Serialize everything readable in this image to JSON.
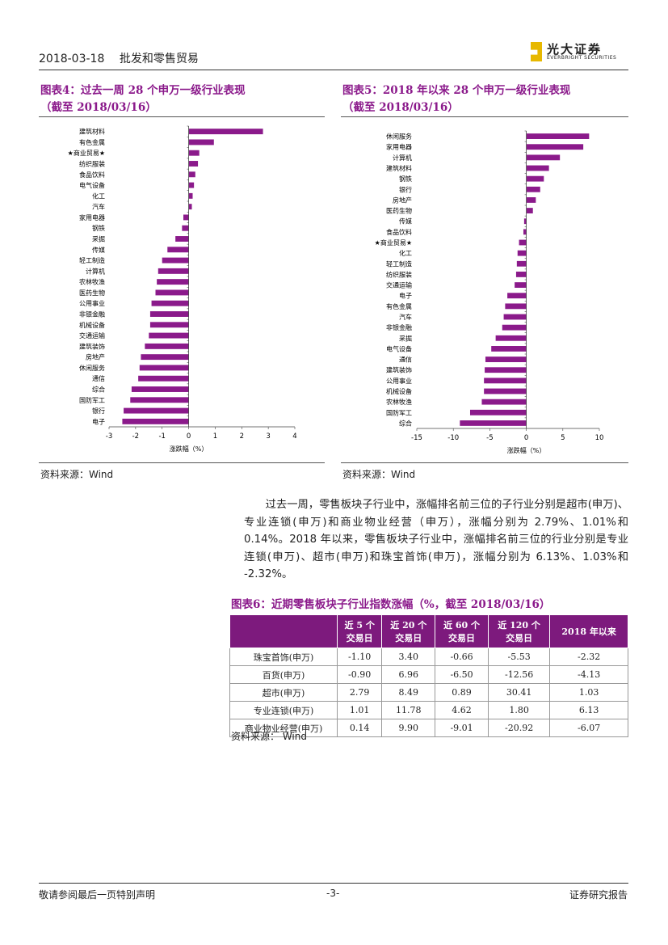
{
  "header": {
    "date": "2018-03-18",
    "sector": "批发和零售贸易",
    "logo_cn": "光大证券",
    "logo_en": "EVERBRIGHT SECURITIES"
  },
  "fig4": {
    "title_line1": "图表4：过去一周 28 个申万一级行业表现",
    "title_line2": "（截至 2018/03/16）",
    "source": "资料来源：Wind"
  },
  "fig5": {
    "title_line1": "图表5：2018 年以来 28 个申万一级行业表现",
    "title_line2": "（截至 2018/03/16）",
    "source": "资料来源：Wind"
  },
  "chart_data": [
    {
      "type": "bar",
      "orientation": "horizontal",
      "categories": [
        "建筑材料",
        "有色金属",
        "★商业贸易★",
        "纺织服装",
        "食品饮料",
        "电气设备",
        "化工",
        "汽车",
        "家用电器",
        "钢铁",
        "采掘",
        "传媒",
        "轻工制造",
        "计算机",
        "农林牧渔",
        "医药生物",
        "公用事业",
        "非银金融",
        "机械设备",
        "交通运输",
        "建筑装饰",
        "房地产",
        "休闲服务",
        "通信",
        "综合",
        "国防军工",
        "银行",
        "电子"
      ],
      "values": [
        2.8,
        0.95,
        0.4,
        0.35,
        0.25,
        0.2,
        0.15,
        0.12,
        -0.2,
        -0.25,
        -0.5,
        -0.8,
        -1.0,
        -1.15,
        -1.2,
        -1.25,
        -1.4,
        -1.45,
        -1.45,
        -1.5,
        -1.65,
        -1.8,
        -1.85,
        -1.9,
        -2.15,
        -2.2,
        -2.45,
        -2.5
      ],
      "xlabel": "涨跌幅（%）",
      "xlim": [
        -3,
        4
      ],
      "xticks": [
        -3,
        -2,
        -1,
        0,
        1,
        2,
        3,
        4
      ],
      "color": "#8b1a8b"
    },
    {
      "type": "bar",
      "orientation": "horizontal",
      "categories": [
        "休闲服务",
        "家用电器",
        "计算机",
        "建筑材料",
        "钢铁",
        "银行",
        "房地产",
        "医药生物",
        "传媒",
        "食品饮料",
        "★商业贸易★",
        "化工",
        "轻工制造",
        "纺织服装",
        "交通运输",
        "电子",
        "有色金属",
        "汽车",
        "非银金融",
        "采掘",
        "电气设备",
        "通信",
        "建筑装饰",
        "公用事业",
        "机械设备",
        "农林牧渔",
        "国防军工",
        "综合"
      ],
      "values": [
        8.6,
        7.8,
        4.6,
        3.1,
        2.4,
        1.9,
        1.3,
        0.9,
        -0.3,
        -0.4,
        -1.0,
        -1.2,
        -1.3,
        -1.4,
        -1.6,
        -2.6,
        -2.9,
        -3.1,
        -3.3,
        -4.2,
        -4.8,
        -5.6,
        -5.7,
        -5.8,
        -5.8,
        -6.1,
        -7.7,
        -9.1
      ],
      "xlabel": "涨跌幅（%）",
      "xlim": [
        -15,
        10
      ],
      "xticks": [
        -15,
        -10,
        -5,
        0,
        5,
        10
      ],
      "color": "#8b1a8b"
    }
  ],
  "paragraph": "过去一周，零售板块子行业中，涨幅排名前三位的子行业分别是超市(申万)、专业连锁(申万)和商业物业经营（申万），涨幅分别为 2.79%、1.01%和 0.14%。2018 年以来，零售板块子行业中，涨幅排名前三位的行业分别是专业连锁(申万)、超市(申万)和珠宝首饰(申万)，涨幅分别为 6.13%、1.03%和 -2.32%。",
  "fig6": {
    "title": "图表6：近期零售板块子行业指数涨幅（%，截至 2018/03/16）",
    "headers": [
      "",
      "近 5 个\n交易日",
      "近 20 个\n交易日",
      "近 60 个\n交易日",
      "近 120 个\n交易日",
      "2018 年以来"
    ],
    "rows": [
      [
        "珠宝首饰(申万)",
        "-1.10",
        "3.40",
        "-0.66",
        "-5.53",
        "-2.32"
      ],
      [
        "百货(申万)",
        "-0.90",
        "6.96",
        "-6.50",
        "-12.56",
        "-4.13"
      ],
      [
        "超市(申万)",
        "2.79",
        "8.49",
        "0.89",
        "30.41",
        "1.03"
      ],
      [
        "专业连锁(申万)",
        "1.01",
        "11.78",
        "4.62",
        "1.80",
        "6.13"
      ],
      [
        "商业物业经营(申万)",
        "0.14",
        "9.90",
        "-9.01",
        "-20.92",
        "-6.07"
      ]
    ],
    "source": "资料来源：  Wind"
  },
  "footer": {
    "left": "敬请参阅最后一页特别声明",
    "center": "-3-",
    "right": "证券研究报告"
  }
}
